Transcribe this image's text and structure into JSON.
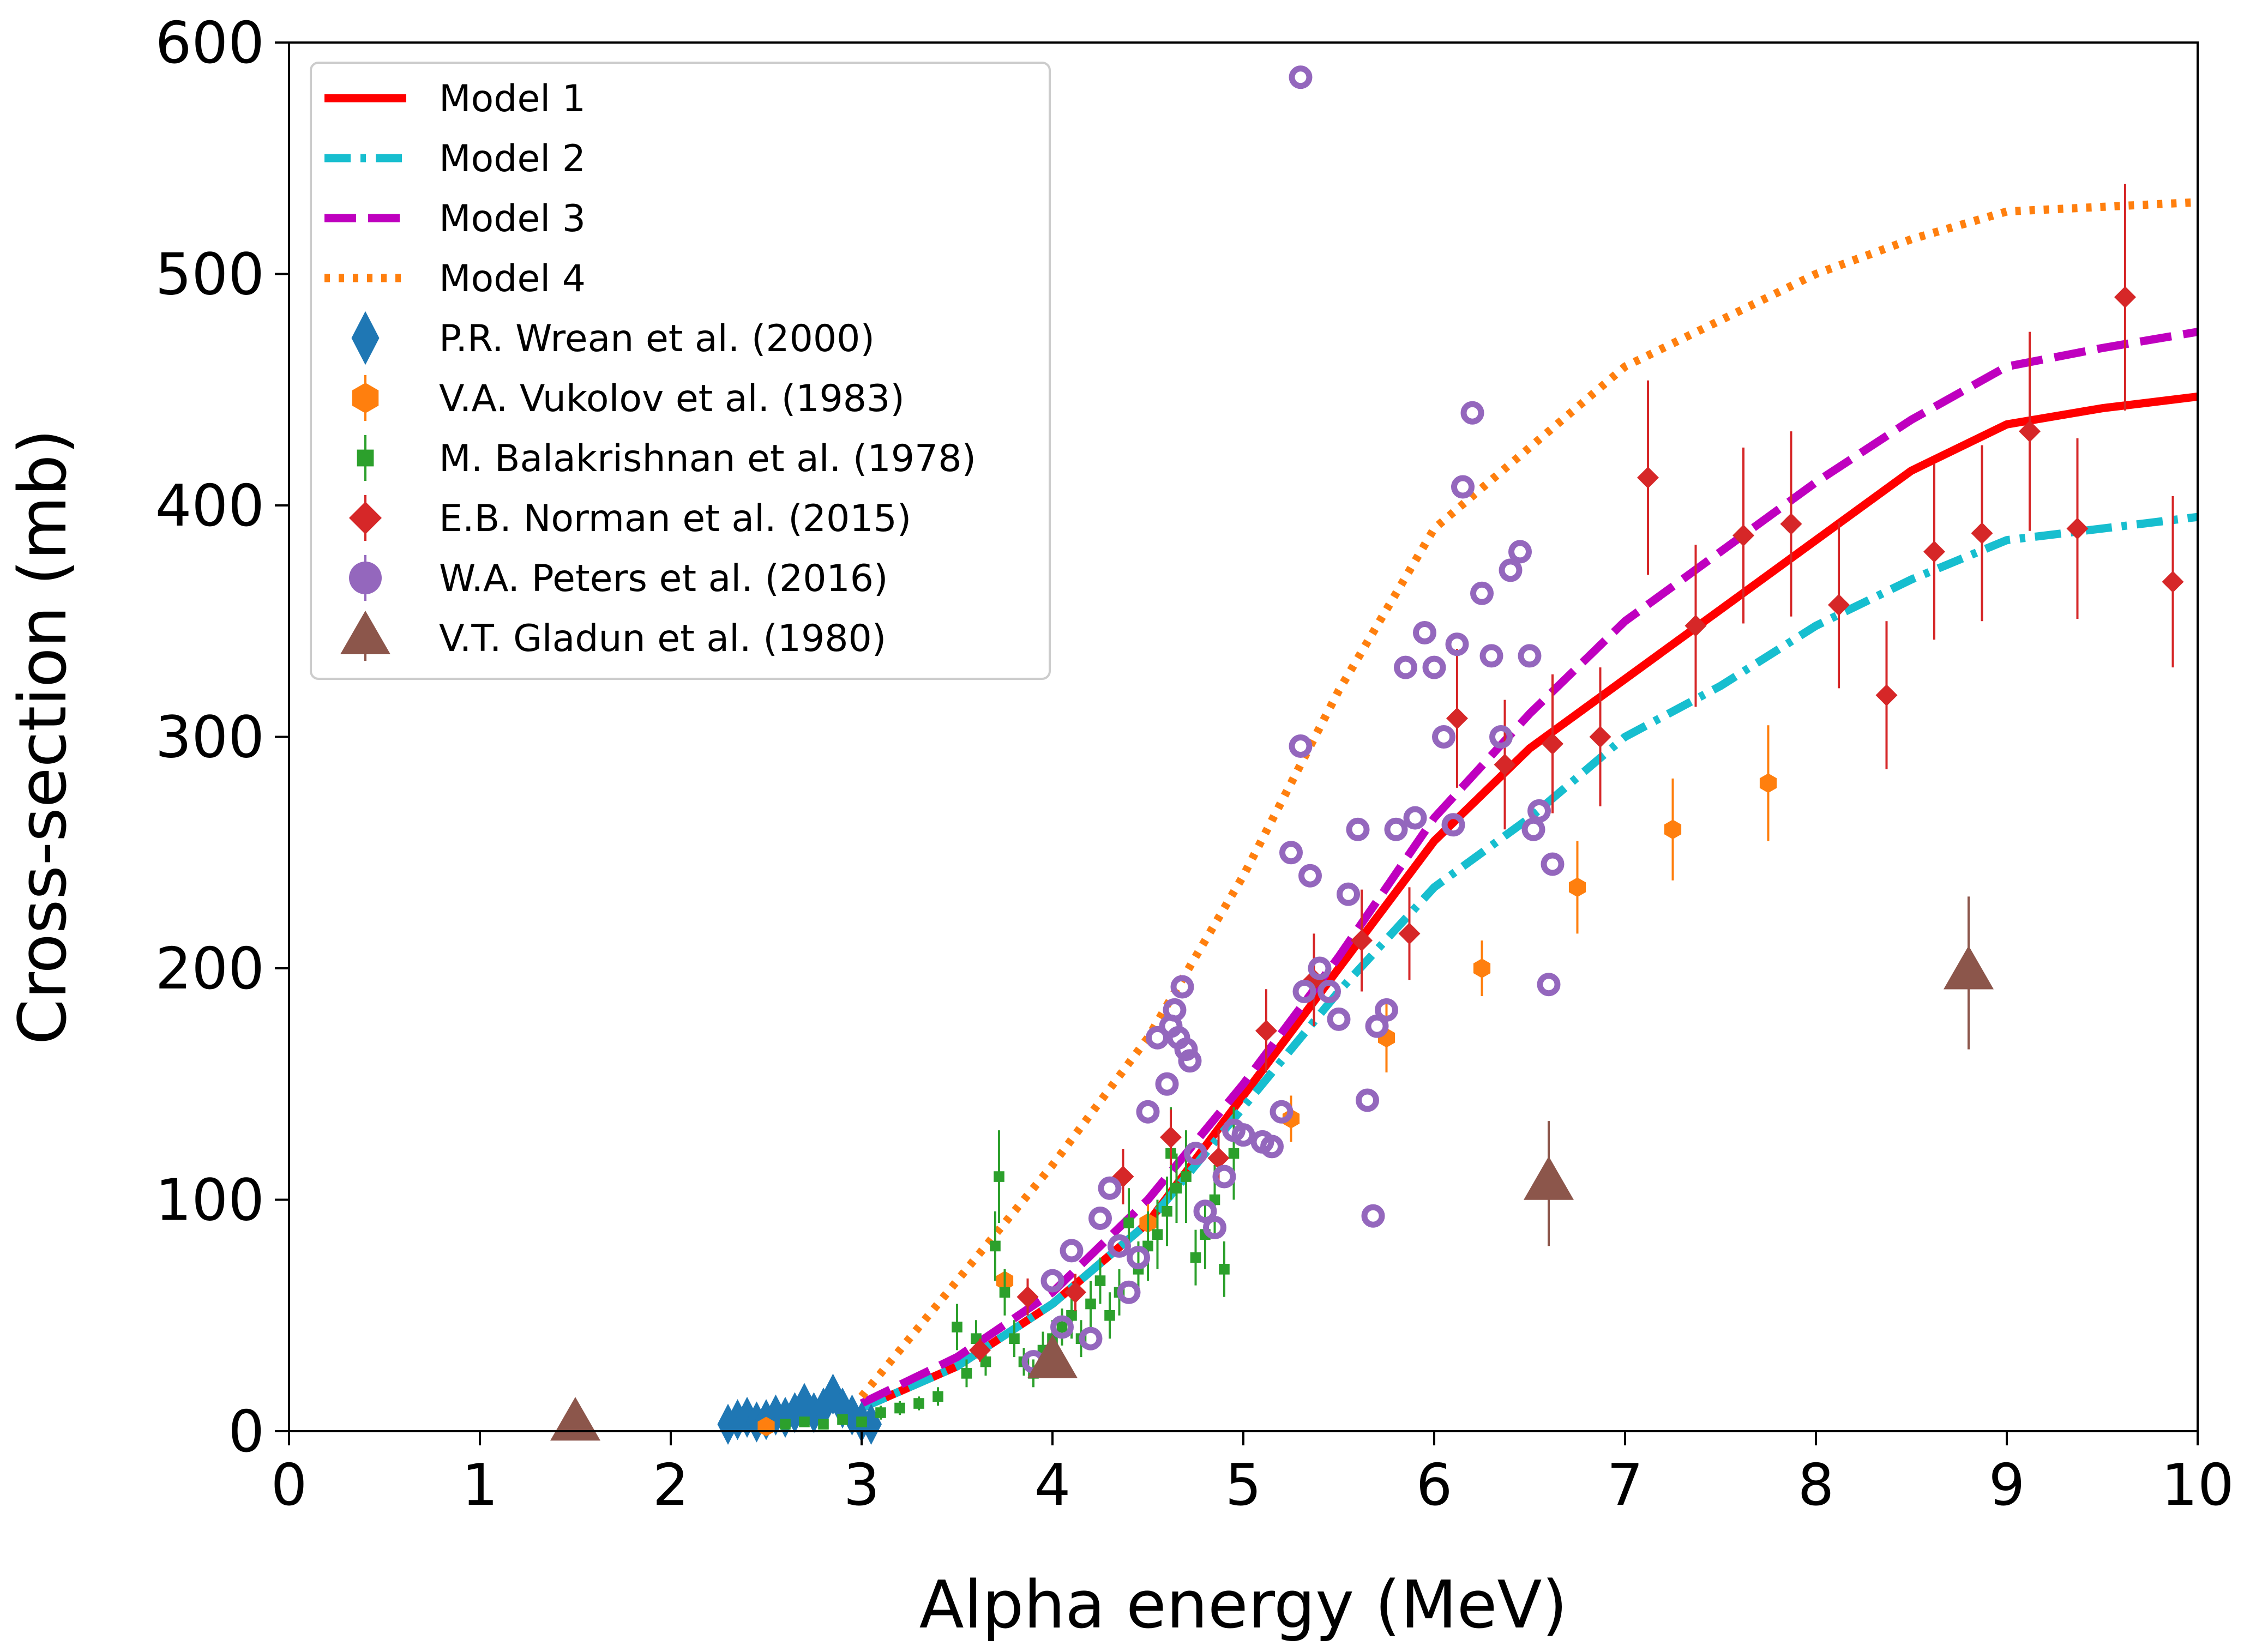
{
  "chart_data": {
    "type": "scatter",
    "title": "",
    "xlabel": "Alpha energy (MeV)",
    "ylabel": "Cross-section (mb)",
    "xlim": [
      0,
      10
    ],
    "ylim": [
      0,
      600
    ],
    "xticks": [
      0,
      1,
      2,
      3,
      4,
      5,
      6,
      7,
      8,
      9,
      10
    ],
    "yticks": [
      0,
      100,
      200,
      300,
      400,
      500,
      600
    ],
    "grid": false,
    "legend_position": "top-left",
    "colors": {
      "model1": "#ff0000",
      "model2": "#17becf",
      "model3": "#bf00bf",
      "model4": "#ff7f0e",
      "wrean": "#1f77b4",
      "vukolov": "#ff7f0e",
      "balakrishnan": "#2ca02c",
      "norman": "#d62728",
      "peters": "#9467bd",
      "gladun": "#8c564b"
    },
    "series": [
      {
        "name": "Model 1",
        "kind": "line",
        "color_key": "model1",
        "dash": "solid",
        "x": [
          3.0,
          3.5,
          4.0,
          4.5,
          5.0,
          5.5,
          6.0,
          6.5,
          7.0,
          7.5,
          8.0,
          8.5,
          9.0,
          9.5,
          10.0
        ],
        "y": [
          10,
          28,
          55,
          90,
          145,
          200,
          255,
          295,
          325,
          355,
          385,
          415,
          435,
          442,
          447
        ]
      },
      {
        "name": "Model 2",
        "kind": "line",
        "color_key": "model2",
        "dash": "dashdot",
        "x": [
          3.0,
          3.5,
          4.0,
          4.5,
          5.0,
          5.5,
          6.0,
          6.5,
          7.0,
          7.5,
          8.0,
          8.5,
          9.0,
          9.5,
          10.0
        ],
        "y": [
          10,
          28,
          55,
          90,
          140,
          190,
          235,
          265,
          300,
          322,
          348,
          368,
          385,
          390,
          395
        ]
      },
      {
        "name": "Model 3",
        "kind": "line",
        "color_key": "model3",
        "dash": "dashed",
        "x": [
          3.0,
          3.5,
          4.0,
          4.5,
          5.0,
          5.5,
          6.0,
          6.5,
          7.0,
          7.5,
          8.0,
          8.5,
          9.0,
          9.5,
          10.0
        ],
        "y": [
          12,
          32,
          60,
          100,
          150,
          205,
          265,
          310,
          350,
          380,
          410,
          437,
          460,
          468,
          475
        ]
      },
      {
        "name": "Model 4",
        "kind": "line",
        "color_key": "model4",
        "dash": "dotted",
        "x": [
          3.0,
          3.5,
          4.0,
          4.5,
          5.0,
          5.5,
          6.0,
          6.5,
          7.0,
          7.5,
          8.0,
          8.5,
          9.0,
          9.5,
          10.0
        ],
        "y": [
          15,
          65,
          115,
          170,
          240,
          320,
          390,
          425,
          460,
          480,
          500,
          515,
          527,
          529,
          531
        ]
      },
      {
        "name": "P.R. Wrean et al. (2000)",
        "kind": "points",
        "marker": "thin_diamond",
        "color_key": "wrean",
        "x": [
          2.3,
          2.35,
          2.4,
          2.45,
          2.5,
          2.55,
          2.6,
          2.65,
          2.7,
          2.75,
          2.8,
          2.85,
          2.9,
          2.95,
          3.0,
          3.05
        ],
        "y": [
          3,
          5,
          6,
          4,
          5,
          7,
          6,
          8,
          12,
          8,
          10,
          16,
          10,
          7,
          4,
          3
        ],
        "err": [
          0,
          0,
          0,
          0,
          0,
          0,
          0,
          0,
          0,
          0,
          0,
          0,
          0,
          0,
          0,
          0
        ]
      },
      {
        "name": "V.A. Vukolov et al. (1983)",
        "kind": "points",
        "marker": "hexagon",
        "color_key": "vukolov",
        "x": [
          2.5,
          3.75,
          4.5,
          5.25,
          5.75,
          6.25,
          6.75,
          7.25,
          7.75
        ],
        "y": [
          2,
          65,
          90,
          135,
          170,
          200,
          235,
          260,
          280
        ],
        "err": [
          0,
          5,
          8,
          10,
          15,
          12,
          20,
          22,
          25
        ]
      },
      {
        "name": "M. Balakrishnan et al. (1978)",
        "kind": "points",
        "marker": "square",
        "color_key": "balakrishnan",
        "x": [
          2.6,
          2.7,
          2.8,
          2.9,
          3.0,
          3.1,
          3.2,
          3.3,
          3.4,
          3.5,
          3.55,
          3.6,
          3.65,
          3.7,
          3.72,
          3.75,
          3.8,
          3.85,
          3.9,
          3.95,
          4.0,
          4.05,
          4.1,
          4.15,
          4.2,
          4.25,
          4.3,
          4.35,
          4.4,
          4.45,
          4.5,
          4.55,
          4.6,
          4.62,
          4.65,
          4.7,
          4.75,
          4.8,
          4.85,
          4.9,
          4.95
        ],
        "y": [
          3,
          4,
          3,
          5,
          4,
          8,
          10,
          12,
          15,
          45,
          25,
          40,
          30,
          80,
          110,
          60,
          40,
          30,
          25,
          35,
          40,
          45,
          50,
          40,
          55,
          65,
          50,
          60,
          90,
          70,
          80,
          85,
          95,
          120,
          105,
          110,
          75,
          85,
          100,
          70,
          120
        ],
        "err": [
          2,
          2,
          2,
          2,
          2,
          3,
          3,
          3,
          4,
          10,
          6,
          8,
          6,
          15,
          20,
          10,
          8,
          6,
          6,
          8,
          8,
          8,
          10,
          8,
          10,
          10,
          10,
          10,
          15,
          12,
          15,
          15,
          15,
          20,
          15,
          20,
          12,
          15,
          15,
          12,
          20
        ]
      },
      {
        "name": "E.B. Norman et al. (2015)",
        "kind": "points",
        "marker": "diamond",
        "color_key": "norman",
        "x": [
          3.62,
          3.87,
          4.12,
          4.37,
          4.62,
          4.87,
          5.12,
          5.37,
          5.62,
          5.87,
          6.12,
          6.37,
          6.62,
          6.87,
          7.12,
          7.37,
          7.62,
          7.87,
          8.12,
          8.37,
          8.62,
          8.87,
          9.12,
          9.37,
          9.62,
          9.87
        ],
        "y": [
          35,
          58,
          60,
          110,
          127,
          118,
          173,
          195,
          212,
          215,
          308,
          288,
          297,
          300,
          412,
          348,
          387,
          392,
          357,
          318,
          380,
          388,
          432,
          390,
          490,
          367
        ],
        "err": [
          5,
          8,
          8,
          12,
          12,
          12,
          18,
          20,
          22,
          20,
          30,
          28,
          30,
          30,
          42,
          35,
          38,
          40,
          36,
          32,
          38,
          38,
          43,
          39,
          49,
          37
        ]
      },
      {
        "name": "W.A. Peters et al. (2016)",
        "kind": "points",
        "marker": "circle",
        "color_key": "peters",
        "x": [
          3.9,
          4.0,
          4.05,
          4.1,
          4.2,
          4.25,
          4.3,
          4.35,
          4.4,
          4.45,
          4.5,
          4.55,
          4.6,
          4.62,
          4.64,
          4.66,
          4.68,
          4.7,
          4.72,
          4.75,
          4.8,
          4.85,
          4.9,
          4.95,
          5.0,
          5.1,
          5.15,
          5.2,
          5.25,
          5.3,
          5.3,
          5.32,
          5.35,
          5.4,
          5.45,
          5.5,
          5.55,
          5.6,
          5.65,
          5.68,
          5.7,
          5.75,
          5.8,
          5.85,
          5.9,
          5.95,
          6.0,
          6.05,
          6.1,
          6.12,
          6.15,
          6.2,
          6.25,
          6.3,
          6.35,
          6.4,
          6.45,
          6.5,
          6.52,
          6.55,
          6.6,
          6.62
        ],
        "y": [
          30,
          65,
          45,
          78,
          40,
          92,
          105,
          80,
          60,
          75,
          138,
          170,
          150,
          175,
          182,
          170,
          192,
          165,
          160,
          120,
          95,
          88,
          110,
          130,
          128,
          125,
          123,
          138,
          250,
          585,
          296,
          190,
          240,
          200,
          190,
          178,
          232,
          260,
          143,
          93,
          175,
          182,
          260,
          330,
          265,
          345,
          330,
          300,
          262,
          340,
          408,
          440,
          362,
          335,
          300,
          372,
          380,
          335,
          260,
          268,
          193,
          245
        ],
        "err": [
          0,
          0,
          0,
          0,
          0,
          0,
          0,
          0,
          0,
          0,
          0,
          0,
          0,
          0,
          0,
          0,
          0,
          0,
          0,
          0,
          0,
          0,
          0,
          0,
          0,
          0,
          0,
          0,
          0,
          0,
          0,
          0,
          0,
          0,
          0,
          0,
          0,
          0,
          0,
          0,
          0,
          0,
          0,
          0,
          0,
          0,
          0,
          0,
          0,
          0,
          0,
          0,
          0,
          0,
          0,
          0,
          0,
          0,
          0,
          0,
          0,
          0
        ]
      },
      {
        "name": "V.T. Gladun et al. (1980)",
        "kind": "points",
        "marker": "triangle",
        "color_key": "gladun",
        "x": [
          1.5,
          4.0,
          6.6,
          8.8
        ],
        "y": [
          3,
          30,
          107,
          198
        ],
        "err": [
          0,
          0,
          27,
          33
        ]
      }
    ]
  }
}
